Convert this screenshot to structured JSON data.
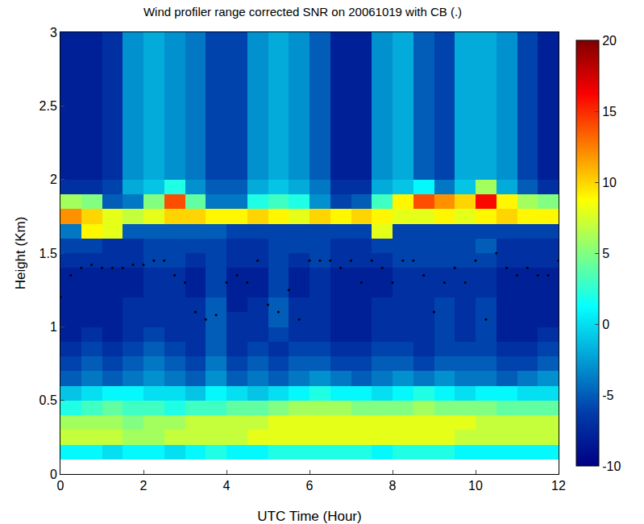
{
  "chart_data": {
    "type": "heatmap",
    "title": "Wind profiler range corrected SNR on 20061019 with CB (.)",
    "x_label": "UTC Time (Hour)",
    "y_label": "Height (Km)",
    "xlim": [
      0,
      12
    ],
    "ylim": [
      0,
      3
    ],
    "xticks": [
      0,
      2,
      4,
      6,
      8,
      10,
      12
    ],
    "yticks": [
      0,
      0.5,
      1,
      1.5,
      2,
      2.5,
      3
    ],
    "color": "jet",
    "heatmap": {
      "x": [
        0.25,
        0.75,
        1.25,
        1.75,
        2.25,
        2.75,
        3.25,
        3.75,
        4.25,
        4.75,
        5.25,
        5.75,
        6.25,
        6.75,
        7.25,
        7.75,
        8.25,
        8.75,
        9.25,
        9.75,
        10.25,
        10.75,
        11.25,
        11.75
      ],
      "y": [
        0.15,
        0.25,
        0.35,
        0.45,
        0.55,
        0.65,
        0.75,
        0.85,
        0.95,
        1.05,
        1.15,
        1.25,
        1.35,
        1.45,
        1.55,
        1.65,
        1.75,
        1.85,
        1.95,
        2.05,
        2.15,
        2.25,
        2.35,
        2.45,
        2.55,
        2.65,
        2.75,
        2.85,
        2.95
      ],
      "cells": [
        [
          1,
          1,
          0,
          1,
          1,
          0,
          1,
          2,
          1,
          1,
          2,
          2,
          2,
          2,
          2,
          1,
          2,
          2,
          2,
          1,
          1,
          1,
          1,
          1
        ],
        [
          7,
          7,
          7,
          6,
          6,
          7,
          7,
          7,
          7,
          8,
          8,
          8,
          8,
          8,
          8,
          8,
          8,
          8,
          8,
          7,
          7,
          7,
          7,
          7
        ],
        [
          6,
          6,
          6,
          5,
          6,
          6,
          7,
          7,
          7,
          7,
          8,
          8,
          8,
          8,
          8,
          8,
          8,
          8,
          8,
          8,
          7,
          7,
          7,
          7
        ],
        [
          2,
          3,
          4,
          3,
          3,
          2,
          3,
          3,
          4,
          4,
          5,
          6,
          6,
          6,
          5,
          5,
          5,
          6,
          5,
          5,
          5,
          4,
          4,
          4
        ],
        [
          -1,
          0,
          1,
          1,
          0,
          0,
          -1,
          1,
          0,
          -1,
          0,
          1,
          2,
          1,
          1,
          0,
          1,
          2,
          1,
          0,
          1,
          1,
          0,
          0
        ],
        [
          -5,
          -4,
          -5,
          -4,
          -3,
          -4,
          -5,
          -3,
          -5,
          -4,
          -5,
          -4,
          -3,
          -4,
          -5,
          -4,
          -3,
          -4,
          -3,
          -4,
          -4,
          -5,
          -4,
          -3
        ],
        [
          -6,
          -5,
          -6,
          -5,
          -4,
          -5,
          -6,
          -4,
          -6,
          -5,
          -6,
          -5,
          -5,
          -6,
          -6,
          -5,
          -5,
          -6,
          -5,
          -5,
          -5,
          -6,
          -6,
          -5
        ],
        [
          -7,
          -6,
          -7,
          -6,
          -5,
          -6,
          -7,
          -5,
          -7,
          -6,
          -7,
          -6,
          -6,
          -7,
          -7,
          -6,
          -6,
          -7,
          -6,
          -6,
          -6,
          -7,
          -7,
          -6
        ],
        [
          -8,
          -7,
          -8,
          -7,
          -6,
          -7,
          -7,
          -5,
          -7,
          -7,
          -6,
          -7,
          -7,
          -8,
          -8,
          -7,
          -7,
          -7,
          -6,
          -7,
          -6,
          -8,
          -8,
          -7
        ],
        [
          -8,
          -8,
          -8,
          -7,
          -7,
          -7,
          -7,
          -5,
          -7,
          -7,
          -5,
          -7,
          -7,
          -8,
          -8,
          -7,
          -7,
          -7,
          -6,
          -7,
          -6,
          -8,
          -8,
          -8
        ],
        [
          -8,
          -8,
          -8,
          -7,
          -7,
          -7,
          -7,
          -5,
          -8,
          -7,
          -5,
          -7,
          -7,
          -8,
          -8,
          -7,
          -7,
          -7,
          -6,
          -7,
          -6,
          -8,
          -8,
          -8
        ],
        [
          -8,
          -8,
          -8,
          -8,
          -7,
          -7,
          -8,
          -6,
          -8,
          -8,
          -6,
          -8,
          -7,
          -8,
          -8,
          -8,
          -7,
          -7,
          -7,
          -7,
          -7,
          -8,
          -8,
          -8
        ],
        [
          -8,
          -8,
          -8,
          -8,
          -7,
          -7,
          -8,
          -6,
          -8,
          -8,
          -6,
          -8,
          -7,
          -8,
          -8,
          -8,
          -7,
          -7,
          -7,
          -7,
          -7,
          -8,
          -8,
          -8
        ],
        [
          -7,
          -7,
          -7,
          -7,
          -6,
          -6,
          -7,
          -6,
          -7,
          -7,
          -6,
          -7,
          -6,
          -7,
          -7,
          -7,
          -6,
          -6,
          -6,
          -6,
          -6,
          -7,
          -7,
          -7
        ],
        [
          -6,
          -6,
          -7,
          -7,
          -6,
          -6,
          -6,
          -6,
          -7,
          -7,
          -6,
          -6,
          -6,
          -7,
          -7,
          -6,
          -6,
          -6,
          -6,
          -6,
          -5,
          -7,
          -7,
          -7
        ],
        [
          -4,
          9,
          8,
          -5,
          -5,
          -5,
          -5,
          -5,
          -6,
          -6,
          -6,
          -6,
          -6,
          -6,
          -6,
          8,
          -6,
          -6,
          -6,
          -6,
          -6,
          -6,
          -6,
          -6
        ],
        [
          12,
          10,
          8,
          7,
          8,
          10,
          10,
          9,
          9,
          10,
          9,
          8,
          10,
          9,
          10,
          9,
          8,
          8,
          9,
          8,
          9,
          10,
          9,
          9
        ],
        [
          6,
          5,
          -5,
          -4,
          5,
          14,
          4,
          -4,
          -4,
          2,
          3,
          2,
          -3,
          -6,
          -5,
          3,
          9,
          14,
          12,
          10,
          16,
          9,
          6,
          5
        ],
        [
          -7,
          -7,
          -6,
          -2,
          -1,
          2,
          -3,
          -5,
          -5,
          -2,
          -1,
          -2,
          -4,
          -7,
          -7,
          -2,
          -1,
          1,
          -4,
          -1,
          6,
          -2,
          -5,
          -7
        ],
        [
          -8,
          -8,
          -7,
          -3,
          -2,
          -3,
          -4,
          -6,
          -6,
          -3,
          -2,
          -3,
          -5,
          -8,
          -8,
          -3,
          -2,
          -5,
          -6,
          -2,
          -2,
          -3,
          -6,
          -8
        ],
        [
          -8,
          -8,
          -7,
          -3,
          -2,
          -3,
          -4,
          -6,
          -6,
          -3,
          -2,
          -3,
          -5,
          -8,
          -8,
          -3,
          -2,
          -5,
          -6,
          -2,
          -2,
          -3,
          -6,
          -8
        ],
        [
          -8,
          -8,
          -7,
          -3,
          -2,
          -3,
          -4,
          -6,
          -6,
          -3,
          -2,
          -3,
          -5,
          -8,
          -8,
          -3,
          -2,
          -5,
          -6,
          -2,
          -2,
          -3,
          -6,
          -8
        ],
        [
          -8,
          -8,
          -7,
          -3,
          -2,
          -3,
          -4,
          -6,
          -6,
          -3,
          -2,
          -3,
          -5,
          -8,
          -8,
          -3,
          -2,
          -5,
          -6,
          -2,
          -2,
          -3,
          -6,
          -8
        ],
        [
          -8,
          -8,
          -7,
          -3,
          -2,
          -3,
          -4,
          -6,
          -6,
          -3,
          -2,
          -3,
          -5,
          -8,
          -8,
          -3,
          -2,
          -5,
          -6,
          -2,
          -2,
          -3,
          -6,
          -8
        ],
        [
          -8,
          -8,
          -7,
          -3,
          -2,
          -3,
          -4,
          -6,
          -6,
          -3,
          -2,
          -3,
          -5,
          -8,
          -8,
          -3,
          -2,
          -5,
          -6,
          -2,
          -2,
          -3,
          -6,
          -8
        ],
        [
          -8,
          -8,
          -7,
          -3,
          -2,
          -3,
          -4,
          -6,
          -6,
          -3,
          -2,
          -3,
          -5,
          -8,
          -8,
          -3,
          -2,
          -5,
          -6,
          -2,
          -2,
          -3,
          -6,
          -8
        ],
        [
          -8,
          -8,
          -7,
          -3,
          -2,
          -3,
          -4,
          -6,
          -6,
          -3,
          -2,
          -3,
          -5,
          -8,
          -8,
          -3,
          -2,
          -5,
          -6,
          -2,
          -2,
          -3,
          -6,
          -8
        ],
        [
          -8,
          -8,
          -7,
          -3,
          -2,
          -3,
          -4,
          -6,
          -6,
          -3,
          -2,
          -3,
          -5,
          -8,
          -8,
          -3,
          -2,
          -5,
          -6,
          -2,
          -2,
          -3,
          -6,
          -8
        ],
        [
          -8,
          -8,
          -7,
          -3,
          -2,
          -3,
          -4,
          -6,
          -6,
          -3,
          -2,
          -3,
          -5,
          -8,
          -8,
          -3,
          -2,
          -5,
          -6,
          -2,
          -2,
          -3,
          -6,
          -8
        ]
      ]
    },
    "colorbar": {
      "range": [
        -10,
        20
      ],
      "ticks": [
        -10,
        -5,
        0,
        5,
        10,
        15,
        20
      ]
    },
    "series": [
      {
        "type": "scatter",
        "color": "#000000",
        "marker": "dot",
        "x": [
          0,
          0.25,
          0.5,
          0.75,
          1,
          1.25,
          1.5,
          1.75,
          2,
          2.25,
          2.5,
          2.75,
          3,
          3.25,
          3.5,
          3.75,
          4,
          4.25,
          4.5,
          4.75,
          5,
          5.25,
          5.5,
          5.75,
          6,
          6.25,
          6.5,
          6.75,
          7,
          7.25,
          7.5,
          7.75,
          8,
          8.25,
          8.5,
          8.75,
          9,
          9.25,
          9.5,
          9.75,
          10,
          10.25,
          10.5,
          10.75,
          11,
          11.25,
          11.5,
          11.75,
          12
        ],
        "values": [
          1.2,
          1.35,
          1.4,
          1.42,
          1.4,
          1.4,
          1.4,
          1.42,
          1.42,
          1.45,
          1.45,
          1.35,
          1.3,
          1.1,
          1.05,
          1.08,
          1.3,
          1.35,
          1.3,
          1.45,
          1.15,
          1.1,
          1.25,
          1.05,
          1.45,
          1.45,
          1.45,
          1.4,
          1.45,
          1.3,
          1.45,
          1.4,
          1.3,
          1.45,
          1.45,
          1.35,
          1.1,
          1.3,
          1.4,
          1.3,
          1.45,
          1.05,
          1.5,
          1.4,
          1.35,
          1.4,
          1.35,
          1.35,
          1.45
        ]
      }
    ]
  }
}
